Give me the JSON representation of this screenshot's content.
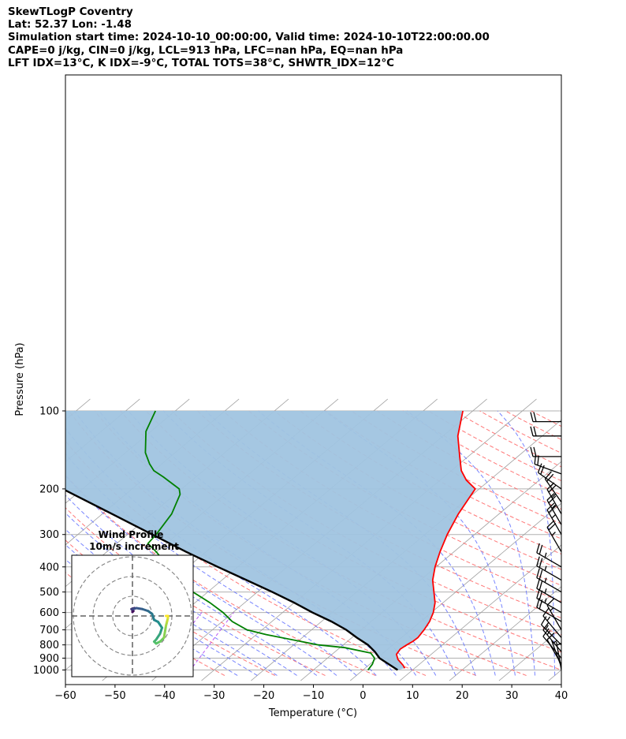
{
  "header": {
    "line1": "SkewTLogP Coventry",
    "line2": "Lat: 52.37   Lon: -1.48",
    "line3": "Simulation start time: 2024-10-10_00:00:00, Valid time: 2024-10-10T22:00:00.00",
    "line4": "CAPE=0 j/kg, CIN=0 j/kg, LCL=913 hPa, LFC=nan hPa, EQ=nan hPa",
    "line5": "LFT IDX=13°C, K IDX=-9°C, TOTAL TOTS=38°C, SHWTR_IDX=12°C"
  },
  "chart_data": {
    "type": "line",
    "subtype": "skewt-logp",
    "xlabel": "Temperature (°C)",
    "ylabel": "Pressure (hPa)",
    "xlim": [
      -60,
      40
    ],
    "ylim": [
      1050,
      100
    ],
    "y_scale": "log",
    "x_ticks": [
      -60,
      -50,
      -40,
      -30,
      -20,
      -10,
      0,
      10,
      20,
      30,
      40
    ],
    "x_tick_labels": [
      "−60",
      "−50",
      "−40",
      "−30",
      "−20",
      "−10",
      "0",
      "10",
      "20",
      "30",
      "40"
    ],
    "y_ticks": [
      1000,
      900,
      800,
      700,
      600,
      500,
      400,
      300,
      200,
      100
    ],
    "y_tick_labels": [
      "1000",
      "900",
      "800",
      "700",
      "600",
      "500",
      "400",
      "300",
      "200",
      "100"
    ],
    "grid": true,
    "colors": {
      "temperature": "#ff0000",
      "dewpoint": "#008000",
      "parcel": "#000000",
      "shading": "#a0c4e0",
      "dry_adiabats": "#ff6060",
      "moist_adiabats": "#6070ff",
      "isotherms": "#a0a0a0",
      "mixing_ratio": "#a020f0"
    },
    "series": [
      {
        "role": "temperature",
        "points": [
          [
            8,
            985
          ],
          [
            7,
            960
          ],
          [
            4.5,
            910
          ],
          [
            3,
            870
          ],
          [
            2.5,
            830
          ],
          [
            2.8,
            800
          ],
          [
            3.2,
            775
          ],
          [
            3.3,
            750
          ],
          [
            2.7,
            700
          ],
          [
            1.8,
            650
          ],
          [
            0.4,
            600
          ],
          [
            -1.6,
            550
          ],
          [
            -4.4,
            500
          ],
          [
            -7.5,
            450
          ],
          [
            -10.2,
            400
          ],
          [
            -12.8,
            350
          ],
          [
            -15.5,
            300
          ],
          [
            -18.2,
            250
          ],
          [
            -20.8,
            200
          ],
          [
            -24.7,
            185
          ],
          [
            -28,
            170
          ],
          [
            -31.7,
            150
          ],
          [
            -37,
            125
          ],
          [
            -42,
            100
          ]
        ]
      },
      {
        "role": "dewpoint",
        "points": [
          [
            1,
            1000
          ],
          [
            0.5,
            950
          ],
          [
            -0.5,
            900
          ],
          [
            -2.5,
            860
          ],
          [
            -9,
            820
          ],
          [
            -15,
            800
          ],
          [
            -28,
            730
          ],
          [
            -33,
            700
          ],
          [
            -38,
            650
          ],
          [
            -42,
            600
          ],
          [
            -47,
            550
          ],
          [
            -53,
            500
          ],
          [
            -59,
            450
          ],
          [
            -64,
            400
          ],
          [
            -70,
            350
          ],
          [
            -73.7,
            325
          ],
          [
            -74.2,
            300
          ],
          [
            -76,
            250
          ],
          [
            -79,
            210
          ],
          [
            -80.5,
            200
          ],
          [
            -86.5,
            180
          ],
          [
            -90,
            170
          ],
          [
            -92.5,
            160
          ],
          [
            -96,
            145
          ],
          [
            -101,
            120
          ],
          [
            -104,
            100
          ]
        ]
      },
      {
        "role": "parcel",
        "points": [
          [
            7,
            1000
          ],
          [
            2.5,
            930
          ],
          [
            0.5,
            900
          ],
          [
            -2,
            850
          ],
          [
            -5,
            800
          ],
          [
            -9,
            750
          ],
          [
            -13,
            700
          ],
          [
            -18,
            650
          ],
          [
            -24,
            600
          ],
          [
            -30,
            550
          ],
          [
            -37,
            500
          ],
          [
            -45,
            450
          ],
          [
            -54,
            400
          ],
          [
            -64,
            350
          ],
          [
            -75,
            300
          ],
          [
            -88,
            250
          ],
          [
            -104,
            200
          ],
          [
            -112,
            175
          ],
          [
            -122,
            150
          ],
          [
            -130,
            130
          ],
          [
            -138,
            115
          ],
          [
            -146,
            100
          ]
        ]
      }
    ],
    "wind_barbs": [
      {
        "pressure": 1000,
        "speed_kt": 5,
        "direction_deg": 350
      },
      {
        "pressure": 975,
        "speed_kt": 5,
        "direction_deg": 340
      },
      {
        "pressure": 950,
        "speed_kt": 10,
        "direction_deg": 330
      },
      {
        "pressure": 900,
        "speed_kt": 10,
        "direction_deg": 320
      },
      {
        "pressure": 850,
        "speed_kt": 15,
        "direction_deg": 320
      },
      {
        "pressure": 800,
        "speed_kt": 15,
        "direction_deg": 315
      },
      {
        "pressure": 750,
        "speed_kt": 15,
        "direction_deg": 320
      },
      {
        "pressure": 700,
        "speed_kt": 15,
        "direction_deg": 330
      },
      {
        "pressure": 650,
        "speed_kt": 20,
        "direction_deg": 300
      },
      {
        "pressure": 600,
        "speed_kt": 25,
        "direction_deg": 300
      },
      {
        "pressure": 550,
        "speed_kt": 25,
        "direction_deg": 300
      },
      {
        "pressure": 500,
        "speed_kt": 25,
        "direction_deg": 300
      },
      {
        "pressure": 450,
        "speed_kt": 25,
        "direction_deg": 300
      },
      {
        "pressure": 400,
        "speed_kt": 25,
        "direction_deg": 300
      },
      {
        "pressure": 350,
        "speed_kt": 25,
        "direction_deg": 330
      },
      {
        "pressure": 300,
        "speed_kt": 25,
        "direction_deg": 330
      },
      {
        "pressure": 275,
        "speed_kt": 25,
        "direction_deg": 330
      },
      {
        "pressure": 250,
        "speed_kt": 25,
        "direction_deg": 330
      },
      {
        "pressure": 225,
        "speed_kt": 25,
        "direction_deg": 325
      },
      {
        "pressure": 200,
        "speed_kt": 20,
        "direction_deg": 305
      },
      {
        "pressure": 175,
        "speed_kt": 20,
        "direction_deg": 290
      },
      {
        "pressure": 150,
        "speed_kt": 20,
        "direction_deg": 270
      },
      {
        "pressure": 125,
        "speed_kt": 20,
        "direction_deg": 270
      },
      {
        "pressure": 110,
        "speed_kt": 20,
        "direction_deg": 270
      }
    ],
    "inset": {
      "title": "Wind Profile",
      "subtitle": "10m/s increment",
      "rings_ms": [
        10,
        20,
        30
      ],
      "hodograph_uv": [
        [
          0.5,
          2.5
        ],
        [
          0,
          2
        ],
        [
          0,
          3
        ],
        [
          1,
          4
        ],
        [
          -0.5,
          3.5
        ],
        [
          0.5,
          3.5
        ],
        [
          2,
          4
        ],
        [
          5,
          3.5
        ],
        [
          8,
          2.5
        ],
        [
          10,
          1
        ],
        [
          11,
          -2
        ],
        [
          13,
          -3
        ],
        [
          15,
          -6
        ],
        [
          14,
          -9
        ],
        [
          12,
          -12
        ],
        [
          11,
          -13
        ],
        [
          12,
          -14
        ],
        [
          14,
          -13
        ],
        [
          16,
          -11
        ],
        [
          17,
          -5
        ],
        [
          17.5,
          -3
        ],
        [
          18,
          -1
        ],
        [
          18,
          0
        ],
        [
          17,
          0
        ]
      ],
      "colormap": [
        "#440154",
        "#3b528b",
        "#21918c",
        "#5ec962",
        "#fde725"
      ]
    }
  }
}
